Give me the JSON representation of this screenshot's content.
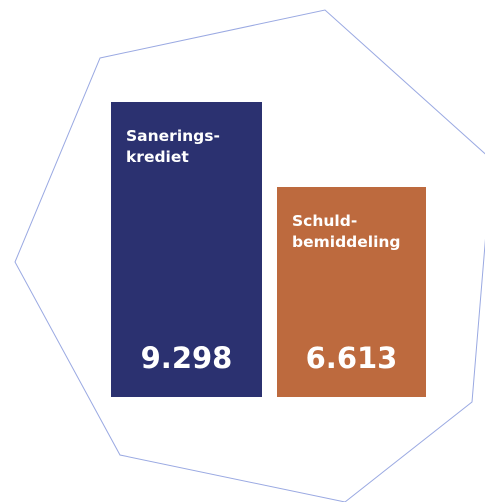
{
  "chart_data": {
    "type": "bar",
    "categories": [
      "Sanerings-\nkrediet",
      "Schuld-\nbemiddeling"
    ],
    "values": [
      9298,
      6613
    ],
    "value_labels": [
      "9.298",
      "6.613"
    ],
    "colors": [
      "#2b3170",
      "#bd6a3e"
    ]
  }
}
